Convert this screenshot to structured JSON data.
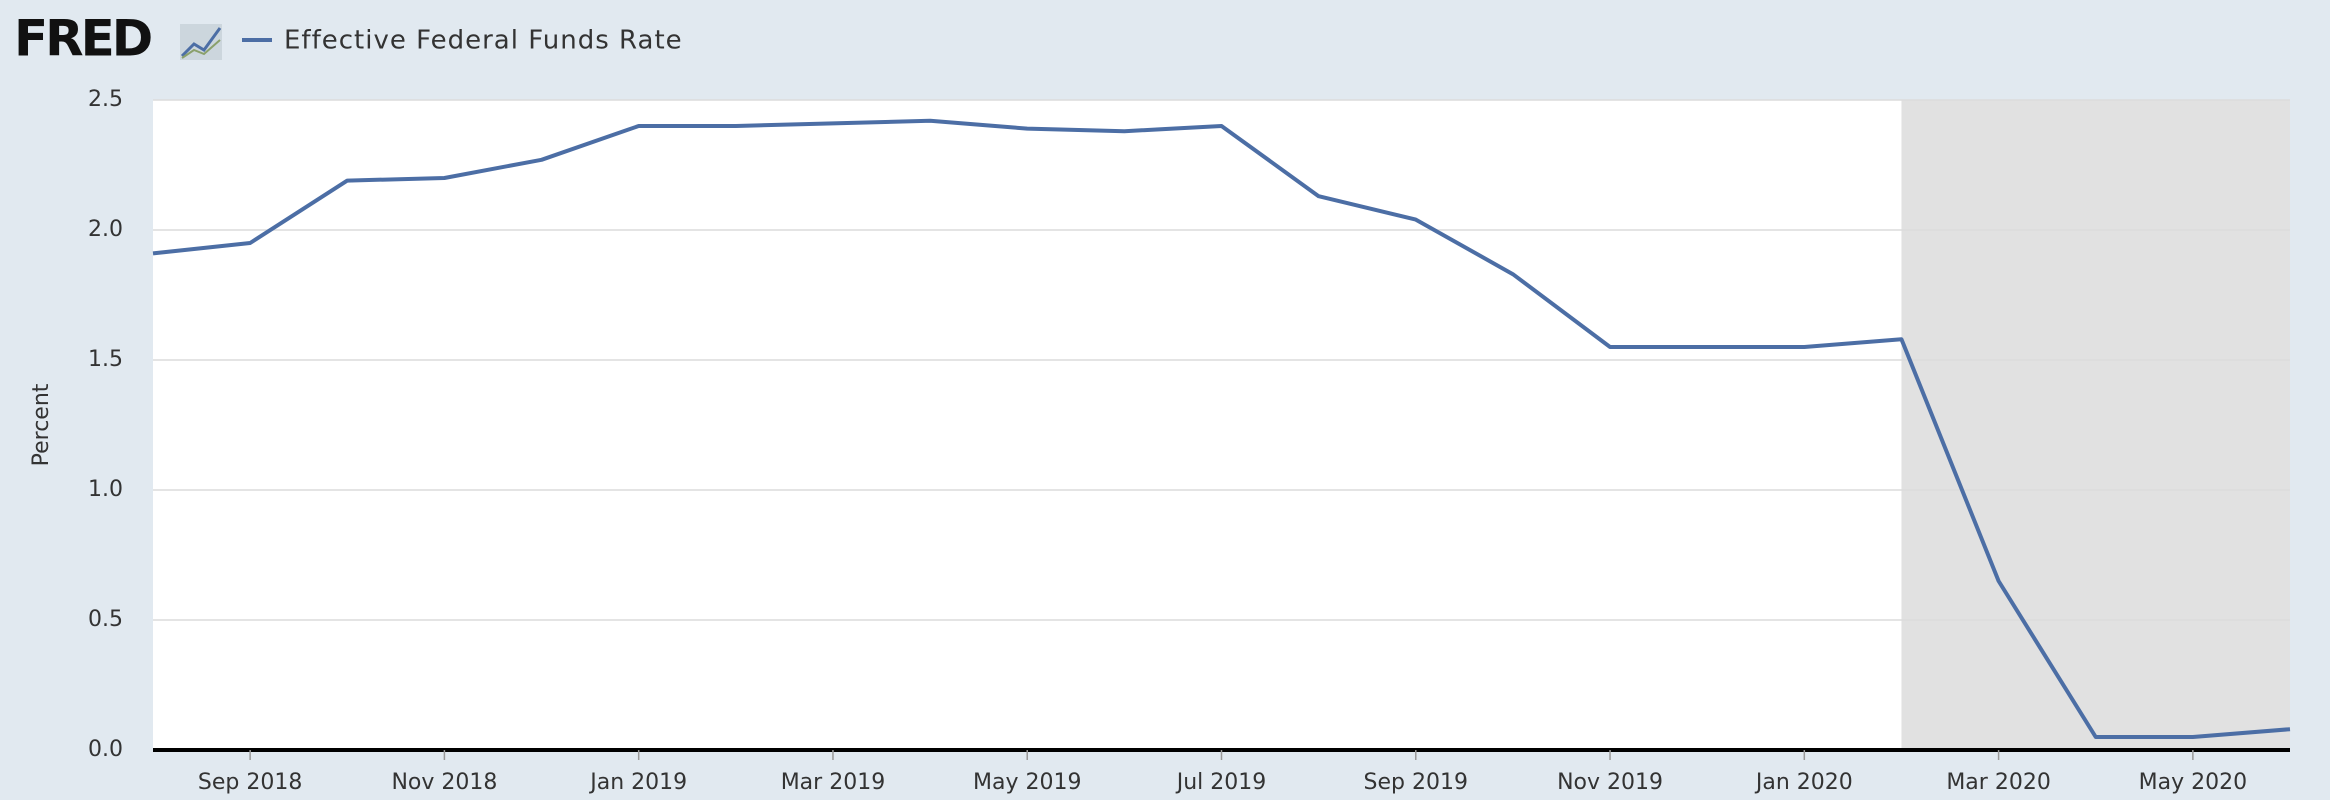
{
  "logo": "FRED",
  "chart_data": {
    "type": "line",
    "ylabel": "Percent",
    "x": [
      "2018-08",
      "2018-09",
      "2018-10",
      "2018-11",
      "2018-12",
      "2019-01",
      "2019-02",
      "2019-03",
      "2019-04",
      "2019-05",
      "2019-06",
      "2019-07",
      "2019-08",
      "2019-09",
      "2019-10",
      "2019-11",
      "2019-12",
      "2020-01",
      "2020-02",
      "2020-03",
      "2020-04",
      "2020-05",
      "2020-06"
    ],
    "series": [
      {
        "name": "Effective Federal Funds Rate",
        "color": "#4c6ea5",
        "values": [
          1.91,
          1.95,
          2.19,
          2.2,
          2.27,
          2.4,
          2.4,
          2.41,
          2.42,
          2.39,
          2.38,
          2.4,
          2.13,
          2.04,
          1.83,
          1.55,
          1.55,
          1.55,
          1.58,
          0.65,
          0.05,
          0.05,
          0.08
        ]
      }
    ],
    "xlim": [
      "2018-08",
      "2020-06"
    ],
    "xticks": [
      {
        "value": "2018-09",
        "label": "Sep 2018"
      },
      {
        "value": "2018-11",
        "label": "Nov 2018"
      },
      {
        "value": "2019-01",
        "label": "Jan 2019"
      },
      {
        "value": "2019-03",
        "label": "Mar 2019"
      },
      {
        "value": "2019-05",
        "label": "May 2019"
      },
      {
        "value": "2019-07",
        "label": "Jul 2019"
      },
      {
        "value": "2019-09",
        "label": "Sep 2019"
      },
      {
        "value": "2019-11",
        "label": "Nov 2019"
      },
      {
        "value": "2020-01",
        "label": "Jan 2020"
      },
      {
        "value": "2020-03",
        "label": "Mar 2020"
      },
      {
        "value": "2020-05",
        "label": "May 2020"
      }
    ],
    "ylim": [
      0,
      2.5
    ],
    "yticks": [
      {
        "value": 0,
        "label": "0.0"
      },
      0.5,
      {
        "value": 1,
        "label": "1.0"
      },
      1.5,
      {
        "value": 2,
        "label": "2.0"
      },
      2.5
    ],
    "grid": true,
    "recession": [
      "2020-02",
      "2020-06"
    ]
  }
}
